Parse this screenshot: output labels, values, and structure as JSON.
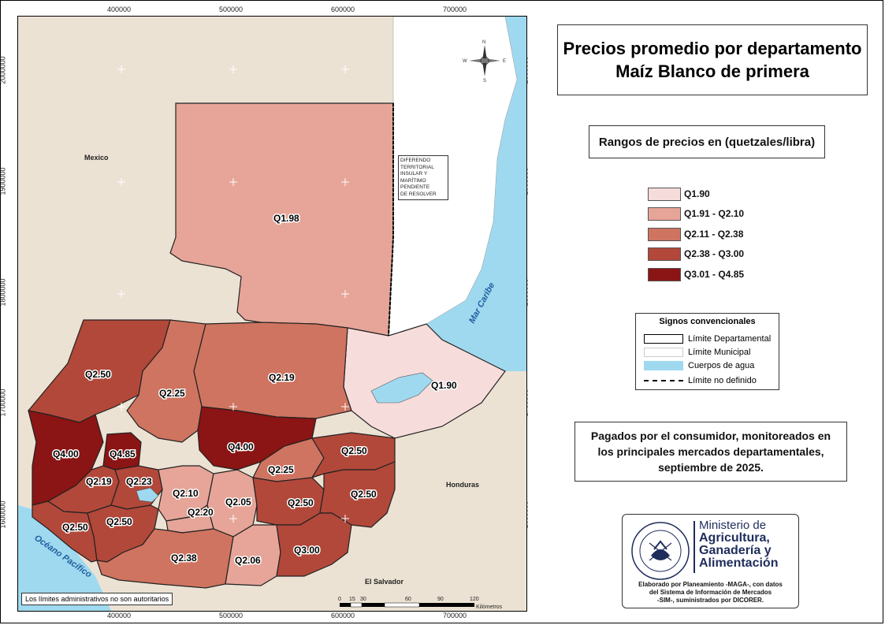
{
  "title": {
    "line1": "Precios promedio por departamento",
    "line2": "Maíz Blanco de primera"
  },
  "legend": {
    "heading": "Rangos de precios en (quetzales/libra)",
    "items": [
      {
        "label": "Q1.90",
        "color": "#f7dcdc"
      },
      {
        "label": "Q1.91 - Q2.10",
        "color": "#e6a598"
      },
      {
        "label": "Q2.11 - Q2.38",
        "color": "#cf7460"
      },
      {
        "label": "Q2.38 - Q3.00",
        "color": "#b2483a"
      },
      {
        "label": "Q3.01 - Q4.85",
        "color": "#8b1414"
      }
    ]
  },
  "signos": {
    "heading": "Signos convencionales",
    "items": [
      {
        "label": "Límite Departamental"
      },
      {
        "label": "Límite Municipal"
      },
      {
        "label": "Cuerpos de agua"
      },
      {
        "label": "Límite no definido"
      }
    ]
  },
  "note": {
    "line1": "Pagados por el consumidor, monitoreados en",
    "line2": "los principales mercados departamentales,",
    "line3": "septiembre de 2025."
  },
  "logo": {
    "seal_text": "GOBIERNO DE LA REPÚBLICA · GUATEMALA",
    "ministry_line1": "Ministerio de",
    "ministry_line2": "Agricultura,",
    "ministry_line3": "Ganadería y",
    "ministry_line4": "Alimentación",
    "credit1": "Elaborado por Planeamiento -MAGA-, con datos",
    "credit2": "del Sistema de Información de Mercados",
    "credit3": "-SIM-, suministrados por DICORER."
  },
  "map": {
    "x_ticks": [
      "400000",
      "500000",
      "600000",
      "700000"
    ],
    "y_ticks": [
      "2000000",
      "1900000",
      "1800000",
      "1700000",
      "1600000"
    ],
    "countries": {
      "mexico": "Mexico",
      "honduras": "Honduras",
      "el_salvador": "El Salvador"
    },
    "water": {
      "caribe": "Mar Caribe",
      "pacifico": "Océano Pacífico"
    },
    "diferendo": [
      "DIFERENDO",
      "TERRITORIAL",
      "INSULAR Y",
      "MARÍTIMO",
      "PENDIENTE",
      "DE RESOLVER"
    ],
    "disclaimer": "Los límites administrativos no son autoritarios",
    "scale": {
      "labels": [
        "0",
        "15",
        "30",
        "60",
        "90",
        "120"
      ],
      "unit": "Kilómetros"
    },
    "north": {
      "n": "N",
      "s": "S",
      "e": "E",
      "w": "W"
    },
    "departments": [
      {
        "id": "peten",
        "price": "Q1.98"
      },
      {
        "id": "izabal",
        "price": "Q1.90"
      },
      {
        "id": "alta-verapaz",
        "price": "Q2.19"
      },
      {
        "id": "huehuetenango",
        "price": "Q2.50"
      },
      {
        "id": "quiche",
        "price": "Q2.25"
      },
      {
        "id": "baja-verapaz",
        "price": "Q4.00"
      },
      {
        "id": "san-marcos",
        "price": "Q4.00"
      },
      {
        "id": "totonicapan",
        "price": "Q4.85"
      },
      {
        "id": "quetzaltenango",
        "price": "Q2.19"
      },
      {
        "id": "solola",
        "price": "Q2.23"
      },
      {
        "id": "zacapa",
        "price": "Q2.50"
      },
      {
        "id": "el-progreso",
        "price": "Q2.25"
      },
      {
        "id": "chimaltenango",
        "price": "Q2.10"
      },
      {
        "id": "guatemala",
        "price": "Q2.05"
      },
      {
        "id": "chiquimula",
        "price": "Q2.50"
      },
      {
        "id": "jalapa",
        "price": "Q2.50"
      },
      {
        "id": "retalhuleu",
        "price": "Q2.50"
      },
      {
        "id": "suchitepequez",
        "price": "Q2.50"
      },
      {
        "id": "sacatepequez",
        "price": "Q2.20"
      },
      {
        "id": "escuintla",
        "price": "Q2.38"
      },
      {
        "id": "santa-rosa",
        "price": "Q2.06"
      },
      {
        "id": "jutiapa",
        "price": "Q3.00"
      }
    ]
  }
}
